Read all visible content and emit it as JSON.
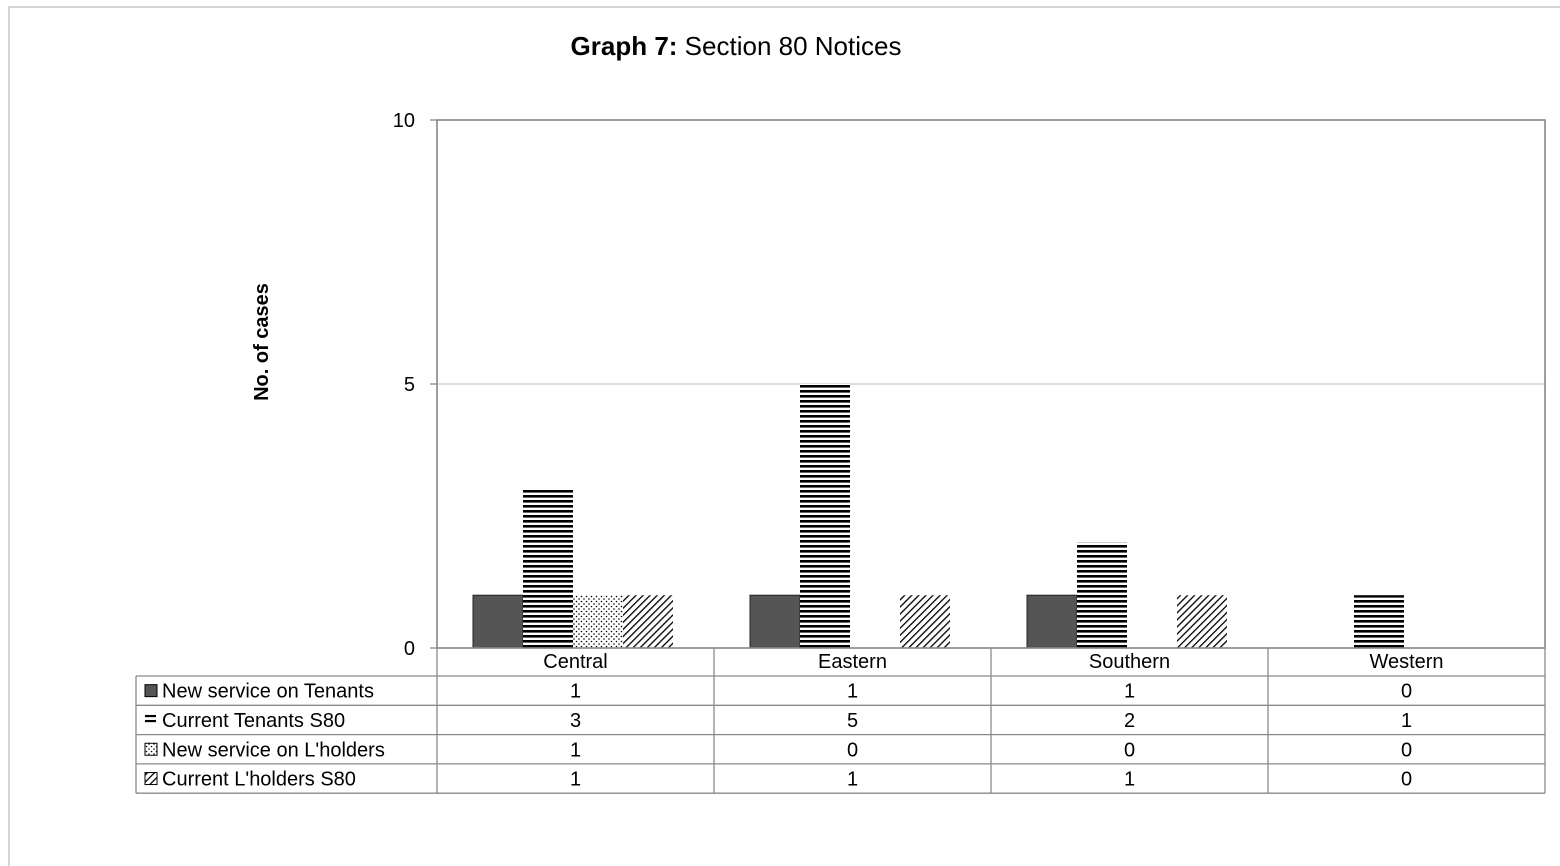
{
  "chart_data": {
    "type": "bar",
    "title_bold": "Graph 7:",
    "title_rest": " Section 80 Notices",
    "ylabel": "No. of cases",
    "xlabel": "",
    "ylim": [
      0,
      10
    ],
    "yticks": [
      0,
      5,
      10
    ],
    "grid": true,
    "legend": "data-table",
    "categories": [
      "Central",
      "Eastern",
      "Southern",
      "Western"
    ],
    "series": [
      {
        "name": "New service on Tenants",
        "values": [
          1,
          1,
          1,
          0
        ],
        "fill": "solid",
        "color": "#555555"
      },
      {
        "name": "Current Tenants S80",
        "values": [
          3,
          5,
          2,
          1
        ],
        "fill": "horizontal-stripes",
        "color": "#000000"
      },
      {
        "name": "New service on L'holders",
        "values": [
          1,
          0,
          0,
          0
        ],
        "fill": "dots",
        "color": "#000000"
      },
      {
        "name": "Current L'holders S80",
        "values": [
          1,
          1,
          1,
          0
        ],
        "fill": "diagonal-hatch",
        "color": "#000000"
      }
    ]
  }
}
